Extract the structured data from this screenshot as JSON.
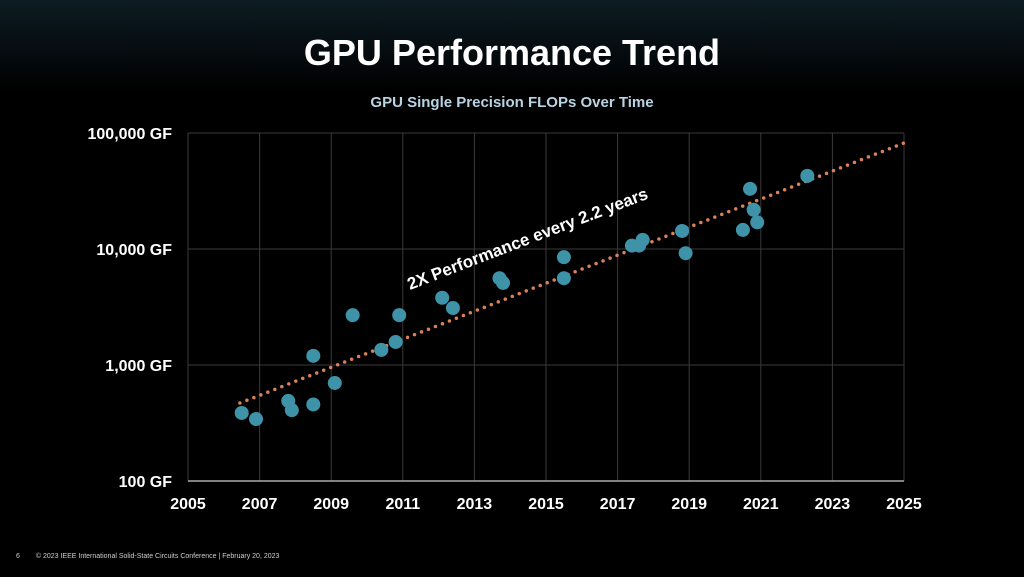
{
  "slide": {
    "title": "GPU Performance Trend",
    "page_number": "6",
    "footer": "© 2023 IEEE International Solid-State Circuits Conference  |  February 20, 2023"
  },
  "chart_data": {
    "type": "scatter",
    "title": "GPU Single Precision FLOPs Over Time",
    "xlabel": "",
    "ylabel": "",
    "xlim": [
      2005,
      2025
    ],
    "ylim": [
      100,
      100000
    ],
    "yscale": "log",
    "grid": true,
    "x_ticks": [
      "2005",
      "2007",
      "2009",
      "2011",
      "2013",
      "2015",
      "2017",
      "2019",
      "2021",
      "2023",
      "2025"
    ],
    "y_ticks": [
      {
        "value": 100,
        "label": "100 GF"
      },
      {
        "value": 1000,
        "label": "1,000 GF"
      },
      {
        "value": 10000,
        "label": "10,000 GF"
      },
      {
        "value": 100000,
        "label": "100,000 GF"
      }
    ],
    "point_color": "#3f93a8",
    "trend_color": "#d9825a",
    "points": [
      [
        2006.5,
        386
      ],
      [
        2006.9,
        342
      ],
      [
        2007.8,
        490
      ],
      [
        2007.9,
        408
      ],
      [
        2008.5,
        457
      ],
      [
        2008.5,
        1200
      ],
      [
        2009.1,
        700
      ],
      [
        2009.6,
        2690
      ],
      [
        2010.4,
        1350
      ],
      [
        2010.8,
        1580
      ],
      [
        2010.9,
        2690
      ],
      [
        2012.1,
        3800
      ],
      [
        2012.4,
        3100
      ],
      [
        2013.7,
        5600
      ],
      [
        2013.8,
        5100
      ],
      [
        2015.5,
        8500
      ],
      [
        2015.5,
        5600
      ],
      [
        2017.4,
        10700
      ],
      [
        2017.6,
        10700
      ],
      [
        2017.7,
        12000
      ],
      [
        2018.8,
        14300
      ],
      [
        2018.9,
        9200
      ],
      [
        2020.5,
        14600
      ],
      [
        2020.7,
        33000
      ],
      [
        2020.8,
        21800
      ],
      [
        2020.9,
        17000
      ],
      [
        2022.3,
        42700
      ]
    ],
    "trendline": {
      "x": [
        2006.45,
        2025
      ],
      "y": [
        470,
        82000
      ]
    },
    "annotation": "2X Performance every 2.2 years"
  }
}
